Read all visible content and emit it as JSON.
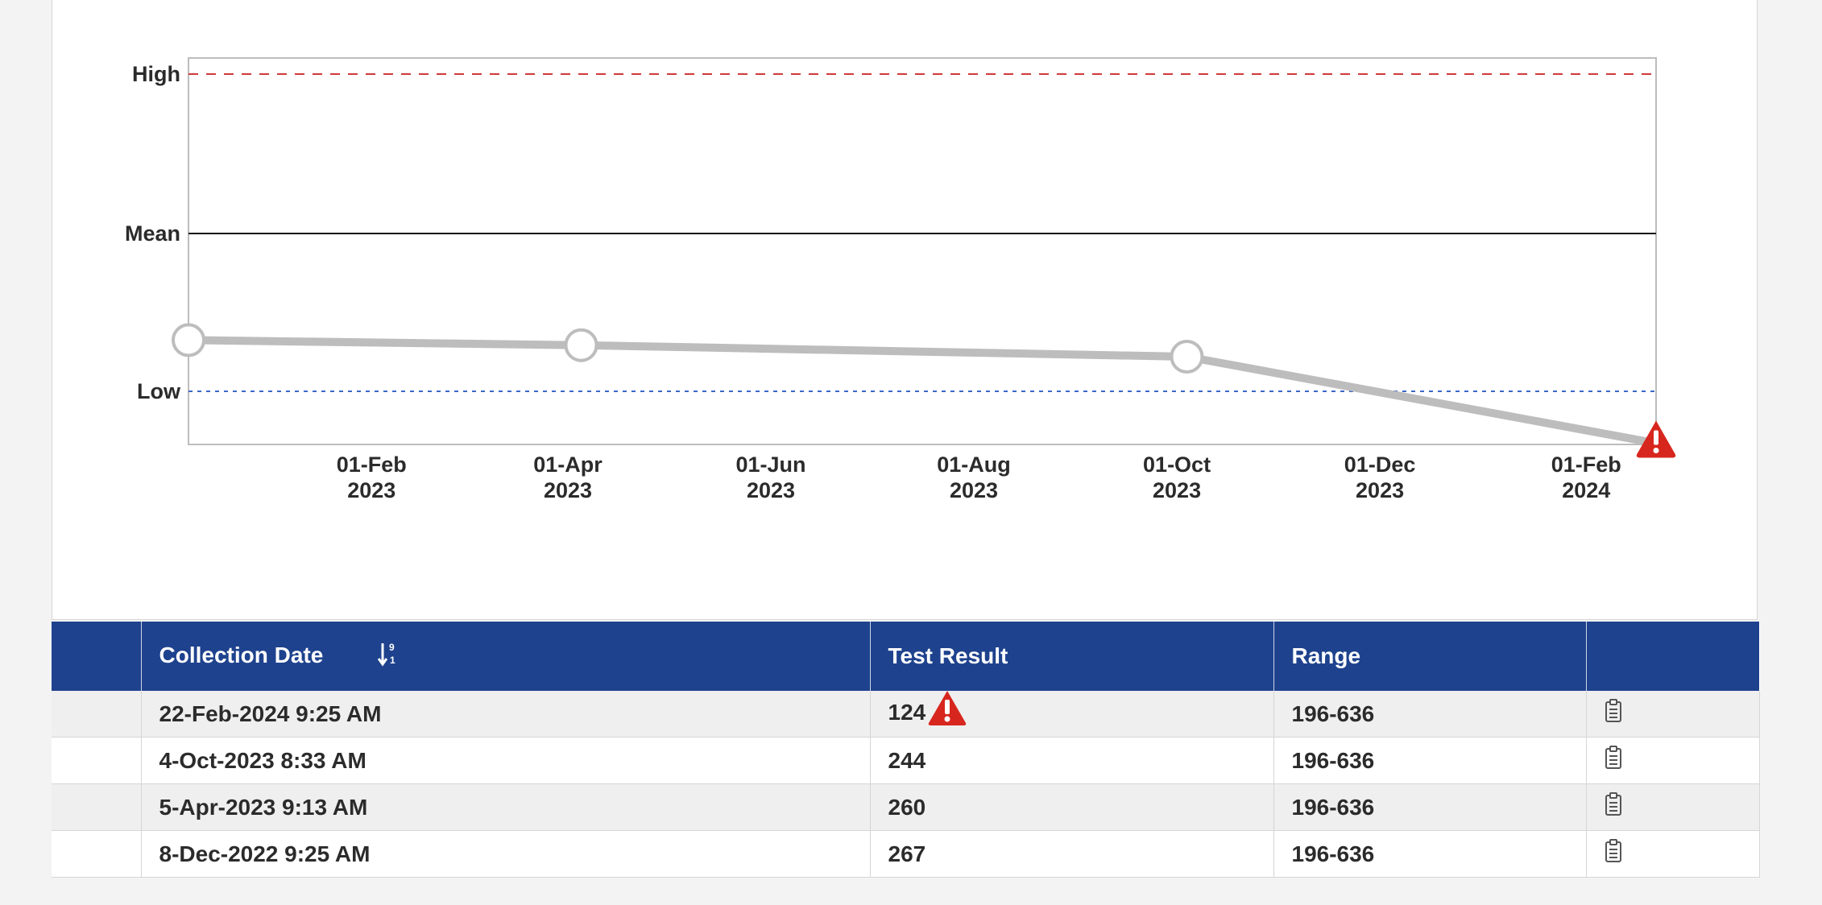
{
  "chart_data": {
    "type": "line",
    "y_reference_labels": [
      "High",
      "Mean",
      "Low"
    ],
    "x_ticks": [
      {
        "line1": "01-Feb",
        "line2": "2023"
      },
      {
        "line1": "01-Apr",
        "line2": "2023"
      },
      {
        "line1": "01-Jun",
        "line2": "2023"
      },
      {
        "line1": "01-Aug",
        "line2": "2023"
      },
      {
        "line1": "01-Oct",
        "line2": "2023"
      },
      {
        "line1": "01-Dec",
        "line2": "2023"
      },
      {
        "line1": "01-Feb",
        "line2": "2024"
      }
    ],
    "x_tick_dates": [
      "2023-02-01",
      "2023-04-01",
      "2023-06-01",
      "2023-08-01",
      "2023-10-01",
      "2023-12-01",
      "2024-02-01"
    ],
    "x_range": [
      "2022-12-08",
      "2024-02-22"
    ],
    "reference_values": {
      "high": 636,
      "low": 196
    },
    "series": [
      {
        "points": [
          {
            "x": "2022-12-08",
            "y": 267
          },
          {
            "x": "2023-04-05",
            "y": 260
          },
          {
            "x": "2023-10-04",
            "y": 244
          },
          {
            "x": "2024-02-22",
            "y": 124,
            "flag": "alert"
          }
        ]
      }
    ],
    "colors": {
      "high_line": "#d0393b",
      "mean_line": "#111111",
      "low_line": "#3c68c8",
      "series": "#bdbdbd",
      "alert": "#d7261e"
    }
  },
  "table": {
    "headers": {
      "date": "Collection Date",
      "result": "Test Result",
      "range": "Range"
    },
    "rows": [
      {
        "date": "22-Feb-2024 9:25 AM",
        "result": "124",
        "range": "196-636",
        "alert": true
      },
      {
        "date": "4-Oct-2023 8:33 AM",
        "result": "244",
        "range": "196-636",
        "alert": false
      },
      {
        "date": "5-Apr-2023 9:13 AM",
        "result": "260",
        "range": "196-636",
        "alert": false
      },
      {
        "date": "8-Dec-2022 9:25 AM",
        "result": "267",
        "range": "196-636",
        "alert": false
      }
    ]
  },
  "icons": {
    "sort": "sort-numeric-icon",
    "alert": "alert-triangle-icon",
    "details": "clipboard-icon"
  },
  "colors": {
    "header_bg": "#1e428d",
    "row_alt": "#efefef"
  }
}
